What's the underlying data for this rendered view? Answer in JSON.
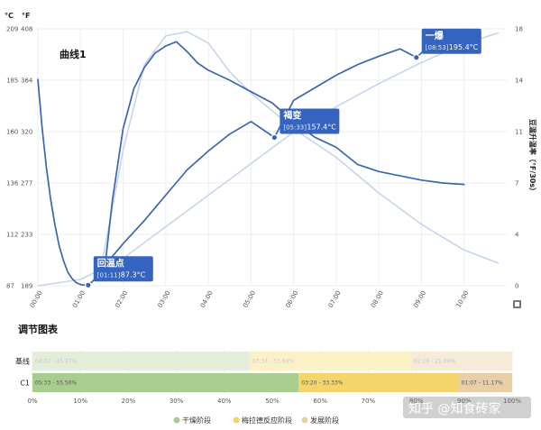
{
  "colors": {
    "main_line": "#3a66ad",
    "faint_line": "#c6d5ec",
    "callout_bg": "#3563c0",
    "marker": "#3a66ad",
    "grid": "#eeeeee",
    "phase_drying": "#a9cd8e",
    "phase_drying_base": "#e3edd9",
    "phase_maillard": "#f3d56b",
    "phase_maillard_base": "#fbf1c7",
    "phase_dev": "#e9cfa6",
    "phase_dev_base": "#f6ead8"
  },
  "chart_data": [
    {
      "type": "line",
      "title": "曲线1",
      "left_axis_labels": {
        "celsius": "°C",
        "fahrenheit": "°F"
      },
      "right_axis_label": "豆温升温率（°F/30s）",
      "x_unit": "min:sec",
      "xlim": [
        0,
        11
      ],
      "x_ticks": [
        "00:00",
        "01:00",
        "02:00",
        "03:00",
        "04:00",
        "05:00",
        "06:00",
        "07:00",
        "08:00",
        "09:00",
        "10:00"
      ],
      "y_left_celsius_ticks": [
        "87",
        "112",
        "136",
        "160",
        "185",
        "209"
      ],
      "y_left_fahrenheit_ticks": [
        "189",
        "233",
        "277",
        "320",
        "364",
        "408"
      ],
      "y_right_ticks": [
        "0",
        "4",
        "7",
        "11",
        "14",
        "18"
      ],
      "ylim_celsius": [
        87,
        209
      ],
      "ylim_ror": [
        0,
        18
      ],
      "grid": true,
      "series": [
        {
          "axis": "celsius",
          "style": "main",
          "x": [
            0.0,
            0.1,
            0.2,
            0.3,
            0.4,
            0.5,
            0.6,
            0.7,
            0.8,
            0.9,
            1.0,
            1.1,
            1.18,
            1.3,
            1.5,
            1.75,
            2.0,
            2.5,
            3.0,
            3.5,
            4.0,
            4.5,
            5.0,
            5.55,
            6.0,
            6.5,
            7.0,
            7.5,
            8.0,
            8.5,
            8.88,
            9.3,
            9.7,
            10.0
          ],
          "y": [
            185,
            162,
            143,
            128,
            116,
            106,
            99,
            93.5,
            90.5,
            88.5,
            87.6,
            87.3,
            87.3,
            89.5,
            95,
            101,
            107,
            118,
            130,
            142,
            151,
            159,
            165,
            157.4,
            175,
            181,
            187,
            192,
            196,
            199.5,
            195.4,
            203,
            206.5,
            208.8
          ]
        },
        {
          "axis": "ror",
          "style": "main",
          "x": [
            1.6,
            1.75,
            2.0,
            2.25,
            2.5,
            2.75,
            3.0,
            3.25,
            3.5,
            3.75,
            4.0,
            4.5,
            5.0,
            5.5,
            6.0,
            6.5,
            7.0,
            7.5,
            8.0,
            8.5,
            9.0,
            9.5,
            10.0
          ],
          "y": [
            2.0,
            6.0,
            11.0,
            13.8,
            15.3,
            16.3,
            16.8,
            17.1,
            16.4,
            15.6,
            15.1,
            14.4,
            13.6,
            12.8,
            11.5,
            10.4,
            9.7,
            8.5,
            8.0,
            7.7,
            7.4,
            7.2,
            7.1
          ]
        },
        {
          "axis": "celsius",
          "style": "faint",
          "x": [
            0.0,
            1.0,
            2.0,
            3.0,
            4.0,
            5.0,
            6.0,
            7.0,
            8.0,
            9.0,
            10.0,
            10.8
          ],
          "y": [
            87,
            90,
            100,
            115,
            130,
            145,
            160,
            172,
            183,
            193,
            202,
            207
          ]
        },
        {
          "axis": "ror",
          "style": "faint",
          "x": [
            1.5,
            2.0,
            2.5,
            3.0,
            3.5,
            4.0,
            4.5,
            5.0,
            6.0,
            7.0,
            8.0,
            9.0,
            10.0,
            10.8
          ],
          "y": [
            1.5,
            9.5,
            15.5,
            17.5,
            17.8,
            17.0,
            15.0,
            13.5,
            11.0,
            9.0,
            6.5,
            4.3,
            2.5,
            1.6
          ]
        }
      ],
      "events": [
        {
          "name": "回温点",
          "time": "[01:11]",
          "value": "87.3°C",
          "x": 1.18,
          "y": 87.3
        },
        {
          "name": "褐变",
          "time": "[05:33]",
          "value": "157.4°C",
          "x": 5.55,
          "y": 157.4
        },
        {
          "name": "一爆",
          "time": "[08:53]",
          "value": "195.4°C",
          "x": 8.88,
          "y": 195.4
        }
      ]
    },
    {
      "type": "bar",
      "title": "调节图表",
      "orientation": "horizontal-stacked",
      "categories": [
        "基线",
        "C1"
      ],
      "x_ticks": [
        "0%",
        "10%",
        "20%",
        "30%",
        "40%",
        "50%",
        "60%",
        "70%",
        "80%",
        "90%",
        "100%"
      ],
      "xlim": [
        0,
        100
      ],
      "series": [
        {
          "name": "干燥阶段",
          "values": [
            45.27,
            55.5
          ],
          "labels": [
            "04:02 - 45.27%",
            "05:33 - 55.50%"
          ]
        },
        {
          "name": "梅拉德反应阶段",
          "values": [
            33.64,
            33.33
          ],
          "labels": [
            "03:37 - 33.64%",
            "03:20 - 33.33%"
          ]
        },
        {
          "name": "发展阶段",
          "values": [
            21.09,
            11.17
          ],
          "labels": [
            "02:16 - 21.09%",
            "01:07 - 11.17%"
          ]
        }
      ]
    }
  ],
  "watermark": "知乎 @知食砖家",
  "legend_title": ""
}
